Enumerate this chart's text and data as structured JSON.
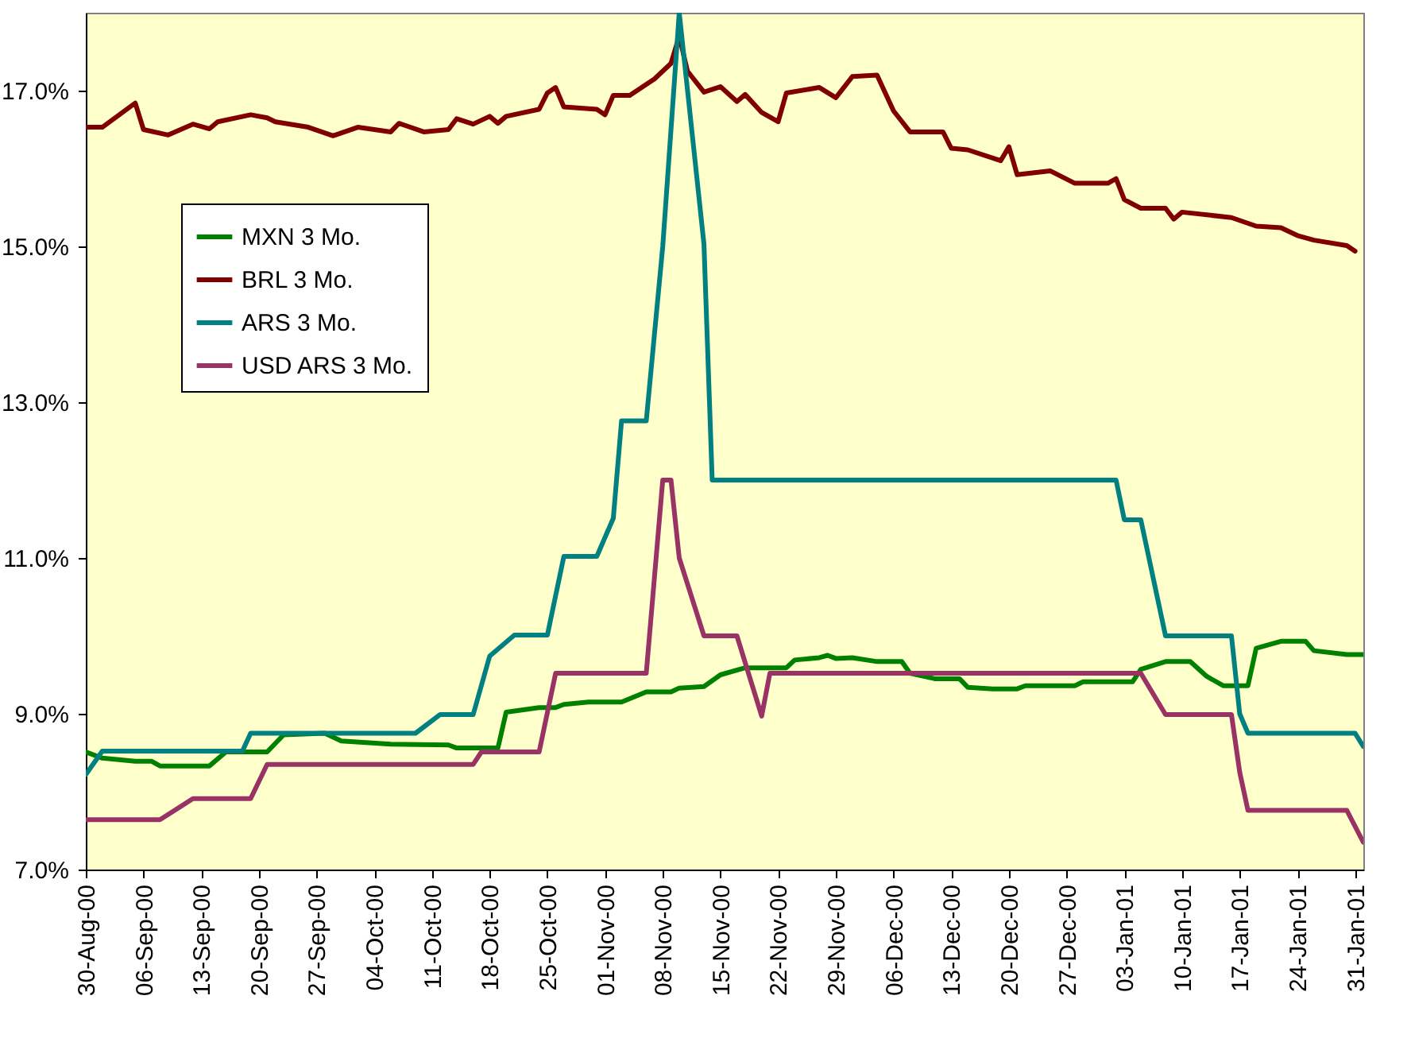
{
  "chart_data": {
    "type": "line",
    "xlim": [
      "2000-08-30",
      "2001-02-01"
    ],
    "ylim": [
      7,
      18
    ],
    "yticks": [
      {
        "value": 7,
        "label": "7.0%"
      },
      {
        "value": 9,
        "label": "9.0%"
      },
      {
        "value": 11,
        "label": "11.0%"
      },
      {
        "value": 13,
        "label": "13.0%"
      },
      {
        "value": 15,
        "label": "15.0%"
      },
      {
        "value": 17,
        "label": "17.0%"
      }
    ],
    "xticks": [
      {
        "value": "2000-08-30",
        "label": "30-Aug-00"
      },
      {
        "value": "2000-09-06",
        "label": "06-Sep-00"
      },
      {
        "value": "2000-09-13",
        "label": "13-Sep-00"
      },
      {
        "value": "2000-09-20",
        "label": "20-Sep-00"
      },
      {
        "value": "2000-09-27",
        "label": "27-Sep-00"
      },
      {
        "value": "2000-10-04",
        "label": "04-Oct-00"
      },
      {
        "value": "2000-10-11",
        "label": "11-Oct-00"
      },
      {
        "value": "2000-10-18",
        "label": "18-Oct-00"
      },
      {
        "value": "2000-10-25",
        "label": "25-Oct-00"
      },
      {
        "value": "2000-11-01",
        "label": "01-Nov-00"
      },
      {
        "value": "2000-11-08",
        "label": "08-Nov-00"
      },
      {
        "value": "2000-11-15",
        "label": "15-Nov-00"
      },
      {
        "value": "2000-11-22",
        "label": "22-Nov-00"
      },
      {
        "value": "2000-11-29",
        "label": "29-Nov-00"
      },
      {
        "value": "2000-12-06",
        "label": "06-Dec-00"
      },
      {
        "value": "2000-12-13",
        "label": "13-Dec-00"
      },
      {
        "value": "2000-12-20",
        "label": "20-Dec-00"
      },
      {
        "value": "2000-12-27",
        "label": "27-Dec-00"
      },
      {
        "value": "2001-01-03",
        "label": "03-Jan-01"
      },
      {
        "value": "2001-01-10",
        "label": "10-Jan-01"
      },
      {
        "value": "2001-01-17",
        "label": "17-Jan-01"
      },
      {
        "value": "2001-01-24",
        "label": "24-Jan-01"
      },
      {
        "value": "2001-01-31",
        "label": "31-Jan-01"
      }
    ],
    "legend": "top left",
    "series": [
      {
        "name": "MXN 3 Mo.",
        "color": "#008000",
        "x": [
          "2000-08-30",
          "2000-09-01",
          "2000-09-05",
          "2000-09-07",
          "2000-09-08",
          "2000-09-14",
          "2000-09-16",
          "2000-09-21",
          "2000-09-23",
          "2000-09-28",
          "2000-09-30",
          "2000-10-06",
          "2000-10-13",
          "2000-10-14",
          "2000-10-19",
          "2000-10-20",
          "2000-10-24",
          "2000-10-26",
          "2000-10-27",
          "2000-10-30",
          "2000-11-03",
          "2000-11-06",
          "2000-11-09",
          "2000-11-10",
          "2000-11-13",
          "2000-11-15",
          "2000-11-18",
          "2000-11-23",
          "2000-11-24",
          "2000-11-27",
          "2000-11-28",
          "2000-11-29",
          "2000-12-01",
          "2000-12-04",
          "2000-12-07",
          "2000-12-08",
          "2000-12-11",
          "2000-12-14",
          "2000-12-15",
          "2000-12-18",
          "2000-12-21",
          "2000-12-22",
          "2000-12-28",
          "2000-12-29",
          "2001-01-04",
          "2001-01-05",
          "2001-01-08",
          "2001-01-11",
          "2001-01-13",
          "2001-01-15",
          "2001-01-18",
          "2001-01-19",
          "2001-01-22",
          "2001-01-25",
          "2001-01-26",
          "2001-01-30",
          "2001-02-01"
        ],
        "values": [
          8.51,
          8.43,
          8.39,
          8.39,
          8.33,
          8.33,
          8.51,
          8.51,
          8.73,
          8.75,
          8.65,
          8.61,
          8.6,
          8.56,
          8.56,
          9.02,
          9.08,
          9.08,
          9.12,
          9.15,
          9.15,
          9.28,
          9.28,
          9.33,
          9.35,
          9.5,
          9.59,
          9.59,
          9.69,
          9.72,
          9.75,
          9.71,
          9.72,
          9.67,
          9.67,
          9.52,
          9.45,
          9.45,
          9.34,
          9.32,
          9.32,
          9.36,
          9.36,
          9.41,
          9.41,
          9.57,
          9.67,
          9.67,
          9.48,
          9.36,
          9.36,
          9.84,
          9.93,
          9.93,
          9.81,
          9.76,
          9.76
        ]
      },
      {
        "name": "BRL 3 Mo.",
        "color": "#800000",
        "x": [
          "2000-08-30",
          "2000-09-01",
          "2000-09-05",
          "2000-09-06",
          "2000-09-09",
          "2000-09-12",
          "2000-09-14",
          "2000-09-15",
          "2000-09-19",
          "2000-09-21",
          "2000-09-22",
          "2000-09-26",
          "2000-09-29",
          "2000-10-02",
          "2000-10-06",
          "2000-10-07",
          "2000-10-10",
          "2000-10-13",
          "2000-10-14",
          "2000-10-16",
          "2000-10-18",
          "2000-10-19",
          "2000-10-20",
          "2000-10-24",
          "2000-10-25",
          "2000-10-26",
          "2000-10-27",
          "2000-10-31",
          "2000-11-01",
          "2000-11-02",
          "2000-11-04",
          "2000-11-07",
          "2000-11-09",
          "2000-11-10",
          "2000-11-11",
          "2000-11-13",
          "2000-11-15",
          "2000-11-17",
          "2000-11-18",
          "2000-11-20",
          "2000-11-22",
          "2000-11-23",
          "2000-11-27",
          "2000-11-29",
          "2000-12-01",
          "2000-12-04",
          "2000-12-06",
          "2000-12-08",
          "2000-12-12",
          "2000-12-13",
          "2000-12-15",
          "2000-12-19",
          "2000-12-20",
          "2000-12-21",
          "2000-12-25",
          "2000-12-28",
          "2001-01-01",
          "2001-01-02",
          "2001-01-03",
          "2001-01-05",
          "2001-01-08",
          "2001-01-09",
          "2001-01-10",
          "2001-01-16",
          "2001-01-19",
          "2001-01-22",
          "2001-01-24",
          "2001-01-26",
          "2001-01-30",
          "2001-01-31"
        ],
        "values": [
          16.53,
          16.53,
          16.84,
          16.5,
          16.43,
          16.57,
          16.51,
          16.6,
          16.69,
          16.65,
          16.6,
          16.53,
          16.42,
          16.53,
          16.47,
          16.58,
          16.47,
          16.5,
          16.64,
          16.57,
          16.67,
          16.58,
          16.67,
          16.76,
          16.97,
          17.04,
          16.79,
          16.76,
          16.69,
          16.94,
          16.94,
          17.15,
          17.35,
          17.7,
          17.25,
          16.98,
          17.05,
          16.86,
          16.95,
          16.72,
          16.6,
          16.97,
          17.04,
          16.91,
          17.18,
          17.2,
          16.74,
          16.47,
          16.47,
          16.26,
          16.24,
          16.1,
          16.28,
          15.92,
          15.97,
          15.81,
          15.81,
          15.87,
          15.6,
          15.49,
          15.49,
          15.35,
          15.44,
          15.37,
          15.26,
          15.24,
          15.14,
          15.08,
          15.01,
          14.94
        ]
      },
      {
        "name": "ARS 3 Mo.",
        "color": "#008080",
        "x": [
          "2000-08-30",
          "2000-09-01",
          "2000-09-18",
          "2000-09-19",
          "2000-10-09",
          "2000-10-12",
          "2000-10-16",
          "2000-10-18",
          "2000-10-21",
          "2000-10-25",
          "2000-10-27",
          "2000-10-31",
          "2000-11-02",
          "2000-11-03",
          "2000-11-06",
          "2000-11-08",
          "2000-11-10",
          "2000-11-13",
          "2000-11-14",
          "2001-01-02",
          "2001-01-03",
          "2001-01-05",
          "2001-01-08",
          "2001-01-16",
          "2001-01-17",
          "2001-01-18",
          "2001-01-31",
          "2001-02-01"
        ],
        "values": [
          8.22,
          8.52,
          8.52,
          8.75,
          8.75,
          8.99,
          8.99,
          9.74,
          10.01,
          10.01,
          11.02,
          11.02,
          11.51,
          12.76,
          12.76,
          15.0,
          18.0,
          15.03,
          12.0,
          12.0,
          11.49,
          11.49,
          10.0,
          10.0,
          9.0,
          8.75,
          8.75,
          8.58
        ]
      },
      {
        "name": "USD ARS 3 Mo.",
        "color": "#993366",
        "x": [
          "2000-08-30",
          "2000-09-08",
          "2000-09-12",
          "2000-09-19",
          "2000-09-21",
          "2000-10-16",
          "2000-10-17",
          "2000-10-24",
          "2000-10-26",
          "2000-11-06",
          "2000-11-08",
          "2000-11-09",
          "2000-11-10",
          "2000-11-13",
          "2000-11-17",
          "2000-11-20",
          "2000-11-21",
          "2001-01-05",
          "2001-01-08",
          "2001-01-16",
          "2001-01-17",
          "2001-01-18",
          "2001-01-30",
          "2001-02-01"
        ],
        "values": [
          7.64,
          7.64,
          7.91,
          7.91,
          8.35,
          8.35,
          8.51,
          8.51,
          9.52,
          9.52,
          12.0,
          12.0,
          11.0,
          10.0,
          10.0,
          8.97,
          9.52,
          9.52,
          8.99,
          8.99,
          8.25,
          7.76,
          7.76,
          7.35
        ]
      }
    ]
  }
}
